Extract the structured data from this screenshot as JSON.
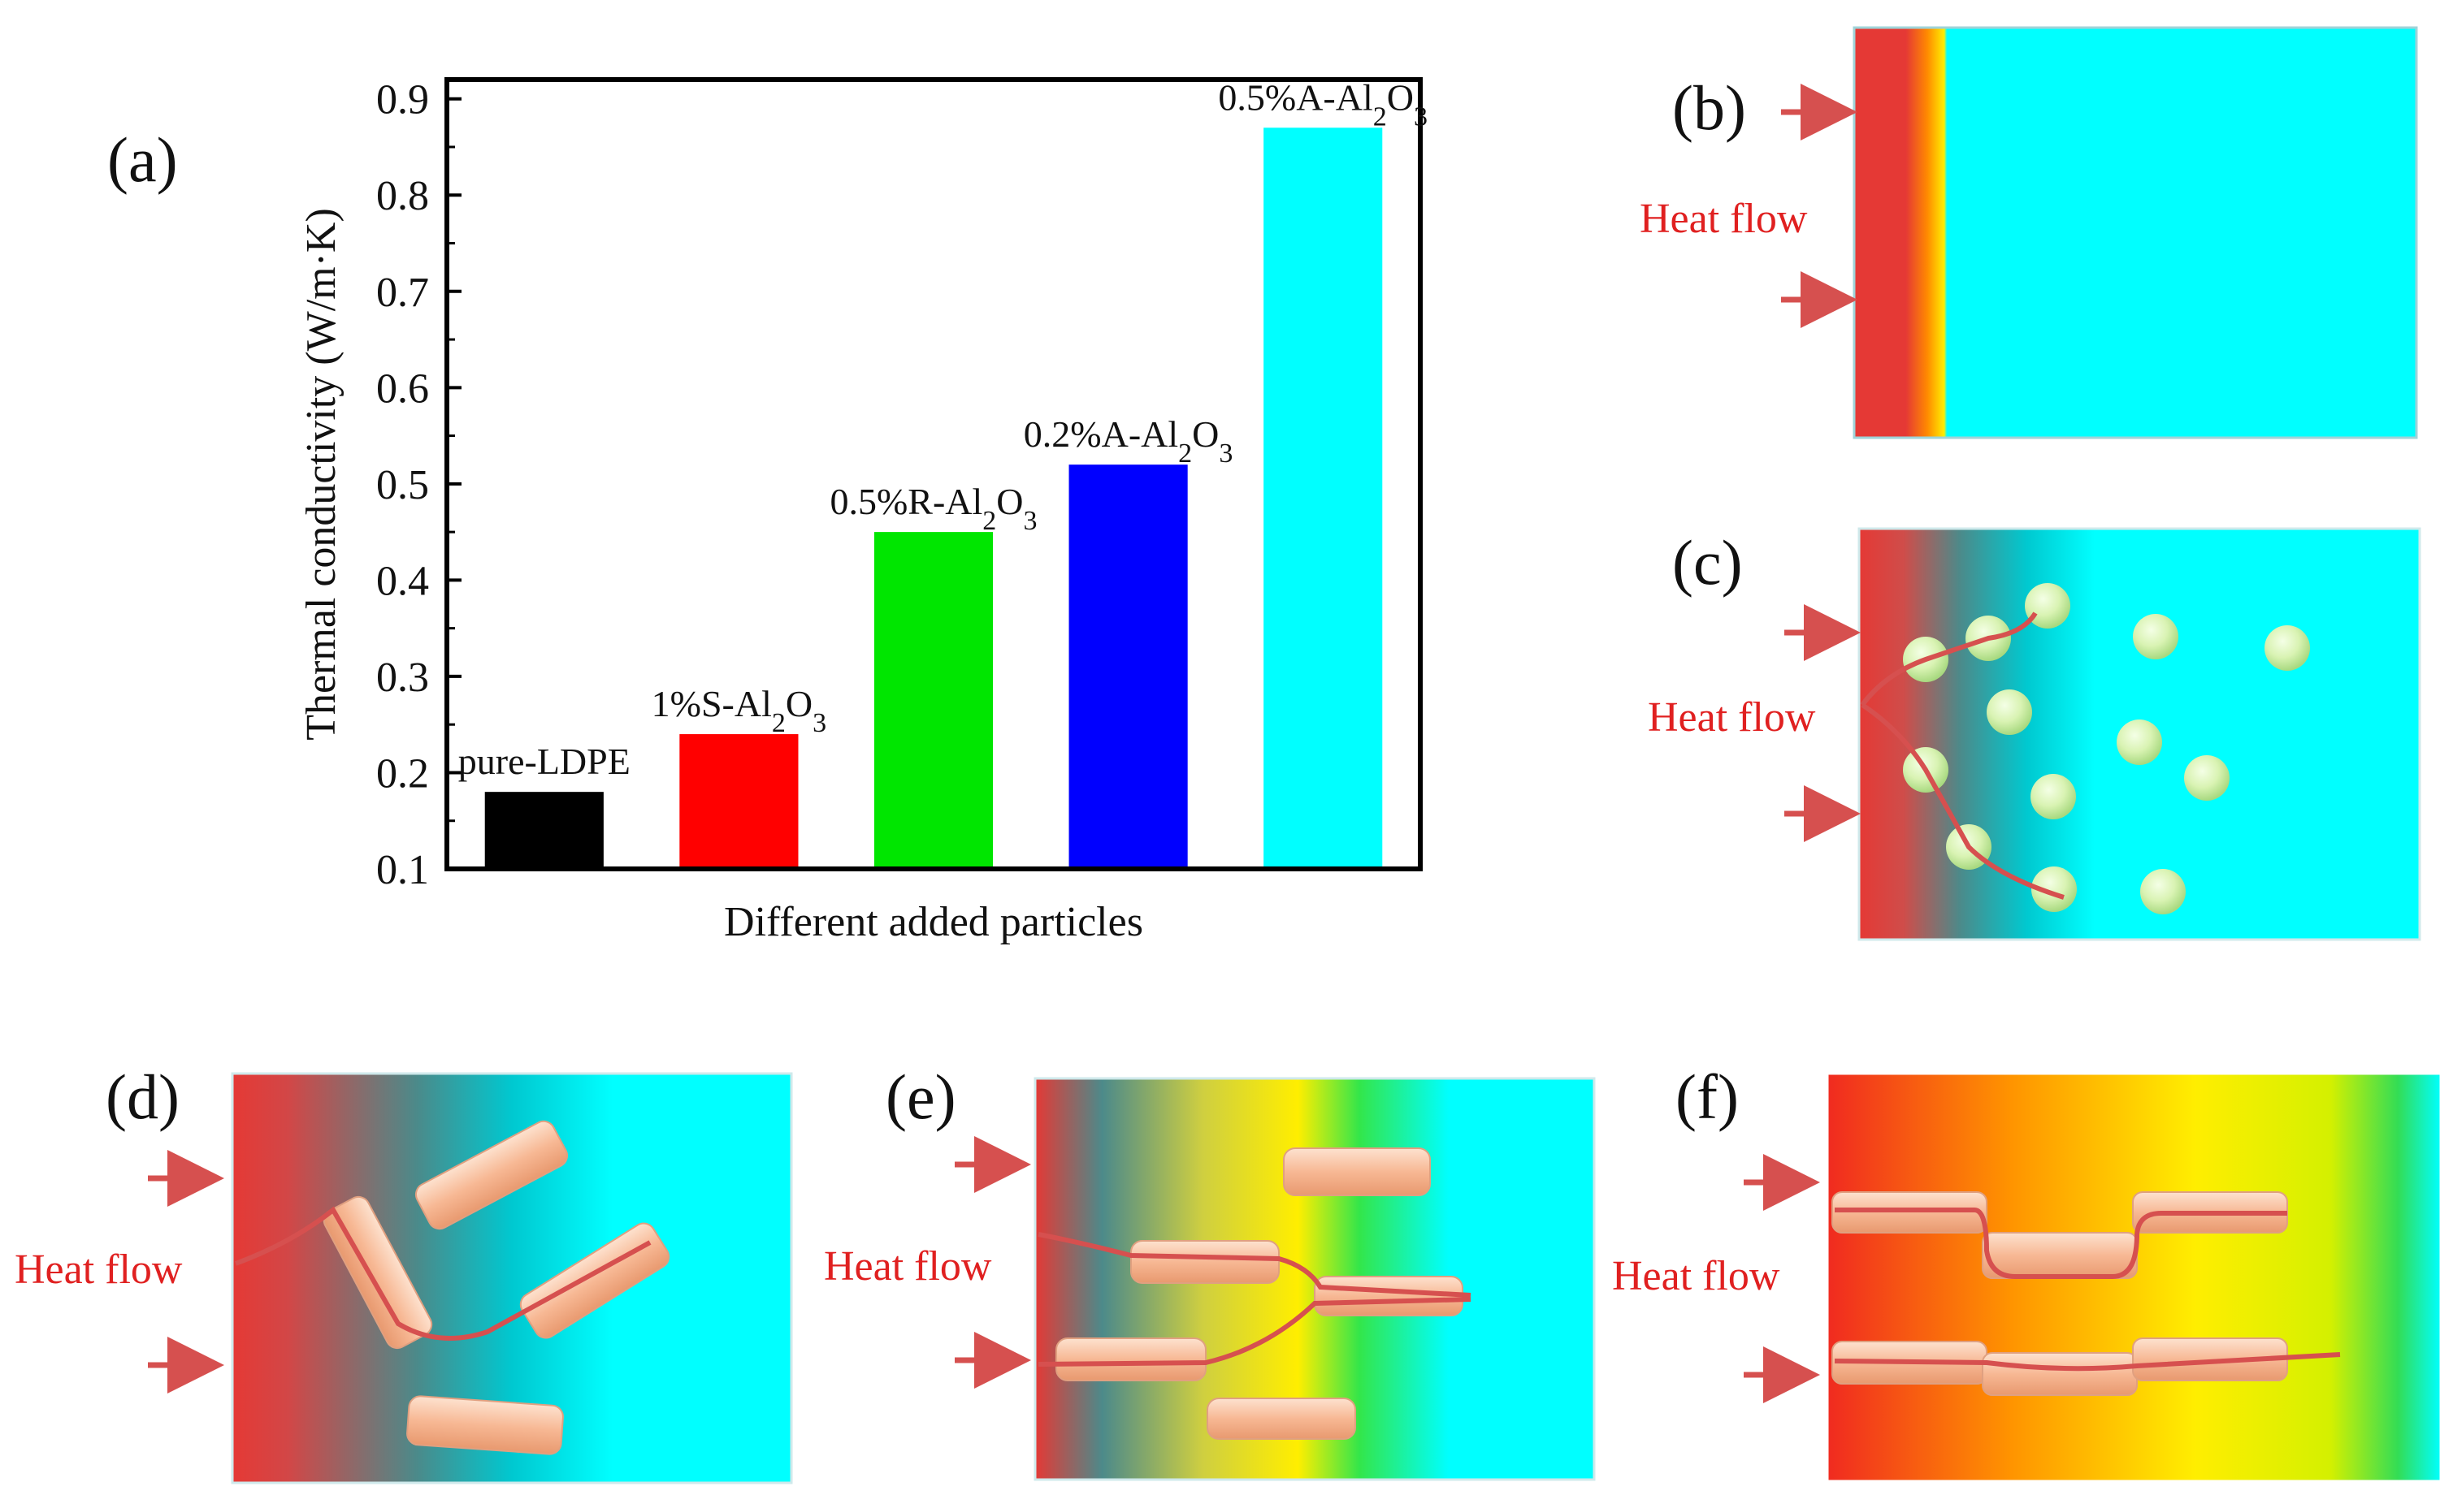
{
  "figure": {
    "panels": {
      "a": "(a)",
      "b": "(b)",
      "c": "(c)",
      "d": "(d)",
      "e": "(e)",
      "f": "(f)"
    },
    "heat_label": "Heat flow",
    "colors": {
      "hot": "#e53935",
      "warm": "#ff9800",
      "mid": "#ffee00",
      "cool": "#00ffff",
      "particle": "#d8f3b0",
      "fiber": "#f6b692",
      "arrow": "#d6504f"
    }
  },
  "chart_data": {
    "type": "bar",
    "categories": [
      "pure-LDPE",
      "1%S-Al2O3",
      "0.5%R-Al2O3",
      "0.2%A-Al2O3",
      "0.5%A-Al2O3"
    ],
    "values": [
      0.18,
      0.24,
      0.45,
      0.52,
      0.87
    ],
    "colors": [
      "#000000",
      "#ff0000",
      "#00e600",
      "#0000ff",
      "#00ffff"
    ],
    "data_labels": [
      {
        "prefix": "pure-LDPE",
        "sub1": "",
        "mid": "",
        "sub2": ""
      },
      {
        "prefix": "1%S-Al",
        "sub1": "2",
        "mid": "O",
        "sub2": "3"
      },
      {
        "prefix": "0.5%R-Al",
        "sub1": "2",
        "mid": "O",
        "sub2": "3"
      },
      {
        "prefix": "0.2%A-Al",
        "sub1": "2",
        "mid": "O",
        "sub2": "3"
      },
      {
        "prefix": "0.5%A-Al",
        "sub1": "2",
        "mid": "O",
        "sub2": "3"
      }
    ],
    "xlabel": "Different added particles",
    "ylabel": "Thermal conductivity (W/m·K)",
    "ylim": [
      0.1,
      0.92
    ],
    "yticks": [
      "0.1",
      "0.2",
      "0.3",
      "0.4",
      "0.5",
      "0.6",
      "0.7",
      "0.8",
      "0.9"
    ],
    "legend": "none",
    "grid": false
  }
}
